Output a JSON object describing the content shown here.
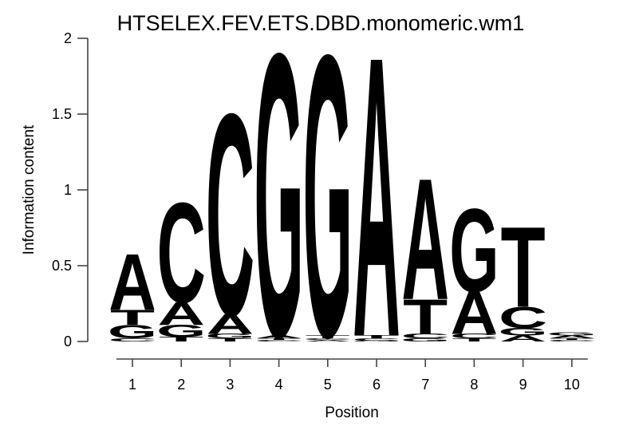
{
  "title": "HTSELEX.FEV.ETS.DBD.monomeric.wm1",
  "chart_data": {
    "type": "sequence-logo",
    "title": "HTSELEX.FEV.ETS.DBD.monomeric.wm1",
    "xlabel": "Position",
    "ylabel": "Information content",
    "ylim": [
      0,
      2
    ],
    "yticks": [
      0,
      0.5,
      1,
      1.5,
      2
    ],
    "ytick_labels": [
      "0",
      "0.5",
      "1",
      "1.5",
      "2"
    ],
    "x_categories": [
      "1",
      "2",
      "3",
      "4",
      "5",
      "6",
      "7",
      "8",
      "9",
      "10"
    ],
    "legend": "none",
    "grid": false,
    "colors": {
      "A": "#0ecc0e",
      "C": "#2222dd",
      "G": "#ffa500",
      "T": "#f20000"
    },
    "axis_color": "#444444",
    "stacks": [
      {
        "position": "1",
        "letters": [
          {
            "base": "A",
            "ic": 0.37
          },
          {
            "base": "T",
            "ic": 0.1
          },
          {
            "base": "G",
            "ic": 0.09
          },
          {
            "base": "C",
            "ic": 0.02
          }
        ]
      },
      {
        "position": "2",
        "letters": [
          {
            "base": "C",
            "ic": 0.66
          },
          {
            "base": "A",
            "ic": 0.15
          },
          {
            "base": "G",
            "ic": 0.08
          },
          {
            "base": "T",
            "ic": 0.03
          }
        ]
      },
      {
        "position": "3",
        "letters": [
          {
            "base": "C",
            "ic": 1.33
          },
          {
            "base": "A",
            "ic": 0.13
          },
          {
            "base": "G",
            "ic": 0.03
          },
          {
            "base": "T",
            "ic": 0.02
          }
        ]
      },
      {
        "position": "4",
        "letters": [
          {
            "base": "G",
            "ic": 1.87
          },
          {
            "base": "A",
            "ic": 0.02
          },
          {
            "base": "T",
            "ic": 0.01
          },
          {
            "base": "C",
            "ic": 0.01
          }
        ]
      },
      {
        "position": "5",
        "letters": [
          {
            "base": "G",
            "ic": 1.86
          },
          {
            "base": "T",
            "ic": 0.02
          },
          {
            "base": "C",
            "ic": 0.01
          },
          {
            "base": "A",
            "ic": 0.01
          }
        ]
      },
      {
        "position": "6",
        "letters": [
          {
            "base": "A",
            "ic": 1.85
          },
          {
            "base": "T",
            "ic": 0.02
          },
          {
            "base": "C",
            "ic": 0.015
          },
          {
            "base": "G",
            "ic": 0.005
          }
        ]
      },
      {
        "position": "7",
        "letters": [
          {
            "base": "A",
            "ic": 0.8
          },
          {
            "base": "T",
            "ic": 0.23
          },
          {
            "base": "C",
            "ic": 0.03
          },
          {
            "base": "G",
            "ic": 0.02
          }
        ]
      },
      {
        "position": "8",
        "letters": [
          {
            "base": "G",
            "ic": 0.55
          },
          {
            "base": "A",
            "ic": 0.28
          },
          {
            "base": "C",
            "ic": 0.03
          },
          {
            "base": "T",
            "ic": 0.02
          }
        ]
      },
      {
        "position": "9",
        "letters": [
          {
            "base": "T",
            "ic": 0.53
          },
          {
            "base": "C",
            "ic": 0.14
          },
          {
            "base": "G",
            "ic": 0.05
          },
          {
            "base": "A",
            "ic": 0.04
          }
        ]
      },
      {
        "position": "10",
        "letters": [
          {
            "base": "G",
            "ic": 0.02
          },
          {
            "base": "A",
            "ic": 0.02
          },
          {
            "base": "T",
            "ic": 0.01
          },
          {
            "base": "C",
            "ic": 0.01
          }
        ]
      }
    ]
  }
}
